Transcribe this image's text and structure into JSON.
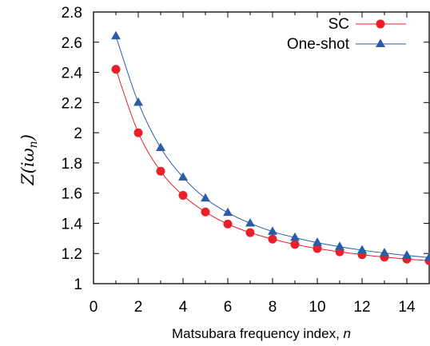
{
  "chart_data": {
    "type": "line",
    "xlabel": "Matsubara frequency index, ",
    "xlabel_var": "n",
    "ylabel_main": "Z(iω",
    "ylabel_sub": "n",
    "ylabel_close": ")",
    "xlim": [
      0,
      15
    ],
    "ylim": [
      1,
      2.8
    ],
    "xticks": [
      "0",
      "2",
      "4",
      "6",
      "8",
      "10",
      "12",
      "14"
    ],
    "yticks": [
      "1",
      "1.2",
      "1.4",
      "1.6",
      "1.8",
      "2",
      "2.2",
      "2.4",
      "2.6",
      "2.8"
    ],
    "legend_position": "top-right",
    "series": [
      {
        "name": "SC",
        "color": "#e8202a",
        "marker": "circle",
        "x": [
          1,
          2,
          3,
          4,
          5,
          6,
          7,
          8,
          9,
          10,
          11,
          12,
          13,
          14,
          15
        ],
        "values": [
          2.42,
          2.0,
          1.745,
          1.585,
          1.475,
          1.395,
          1.338,
          1.295,
          1.26,
          1.233,
          1.211,
          1.192,
          1.176,
          1.163,
          1.152
        ]
      },
      {
        "name": "One-shot",
        "color": "#2a5ca8",
        "marker": "triangle",
        "x": [
          1,
          2,
          3,
          4,
          5,
          6,
          7,
          8,
          9,
          10,
          11,
          12,
          13,
          14,
          15
        ],
        "values": [
          2.64,
          2.2,
          1.9,
          1.705,
          1.565,
          1.47,
          1.4,
          1.345,
          1.305,
          1.272,
          1.245,
          1.222,
          1.203,
          1.187,
          1.173
        ]
      }
    ]
  }
}
